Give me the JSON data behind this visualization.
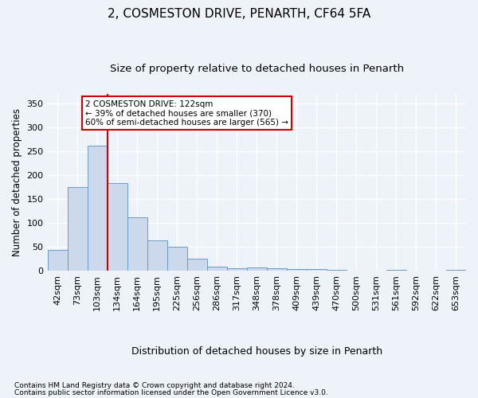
{
  "title": "2, COSMESTON DRIVE, PENARTH, CF64 5FA",
  "subtitle": "Size of property relative to detached houses in Penarth",
  "xlabel": "Distribution of detached houses by size in Penarth",
  "ylabel": "Number of detached properties",
  "footnote1": "Contains HM Land Registry data © Crown copyright and database right 2024.",
  "footnote2": "Contains public sector information licensed under the Open Government Licence v3.0.",
  "categories": [
    "42sqm",
    "73sqm",
    "103sqm",
    "134sqm",
    "164sqm",
    "195sqm",
    "225sqm",
    "256sqm",
    "286sqm",
    "317sqm",
    "348sqm",
    "378sqm",
    "409sqm",
    "439sqm",
    "470sqm",
    "500sqm",
    "531sqm",
    "561sqm",
    "592sqm",
    "622sqm",
    "653sqm"
  ],
  "values": [
    44,
    175,
    262,
    183,
    112,
    64,
    51,
    25,
    8,
    6,
    7,
    5,
    4,
    3,
    2,
    1,
    0,
    2,
    0,
    0,
    2
  ],
  "bar_color": "#ccd9ec",
  "bar_edge_color": "#6a9cc8",
  "property_line_x": 2.5,
  "annotation_text": "2 COSMESTON DRIVE: 122sqm\n← 39% of detached houses are smaller (370)\n60% of semi-detached houses are larger (565) →",
  "annotation_box_color": "#ffffff",
  "annotation_box_edge_color": "#cc0000",
  "vline_color": "#cc0000",
  "yticks": [
    0,
    50,
    100,
    150,
    200,
    250,
    300,
    350
  ],
  "ylim": [
    0,
    370
  ],
  "background_color": "#eef2f9",
  "grid_color": "#ffffff",
  "title_fontsize": 11,
  "subtitle_fontsize": 9.5,
  "ylabel_fontsize": 8.5,
  "xlabel_fontsize": 9,
  "tick_fontsize": 8,
  "annotation_fontsize": 7.5,
  "footnote_fontsize": 6.5
}
